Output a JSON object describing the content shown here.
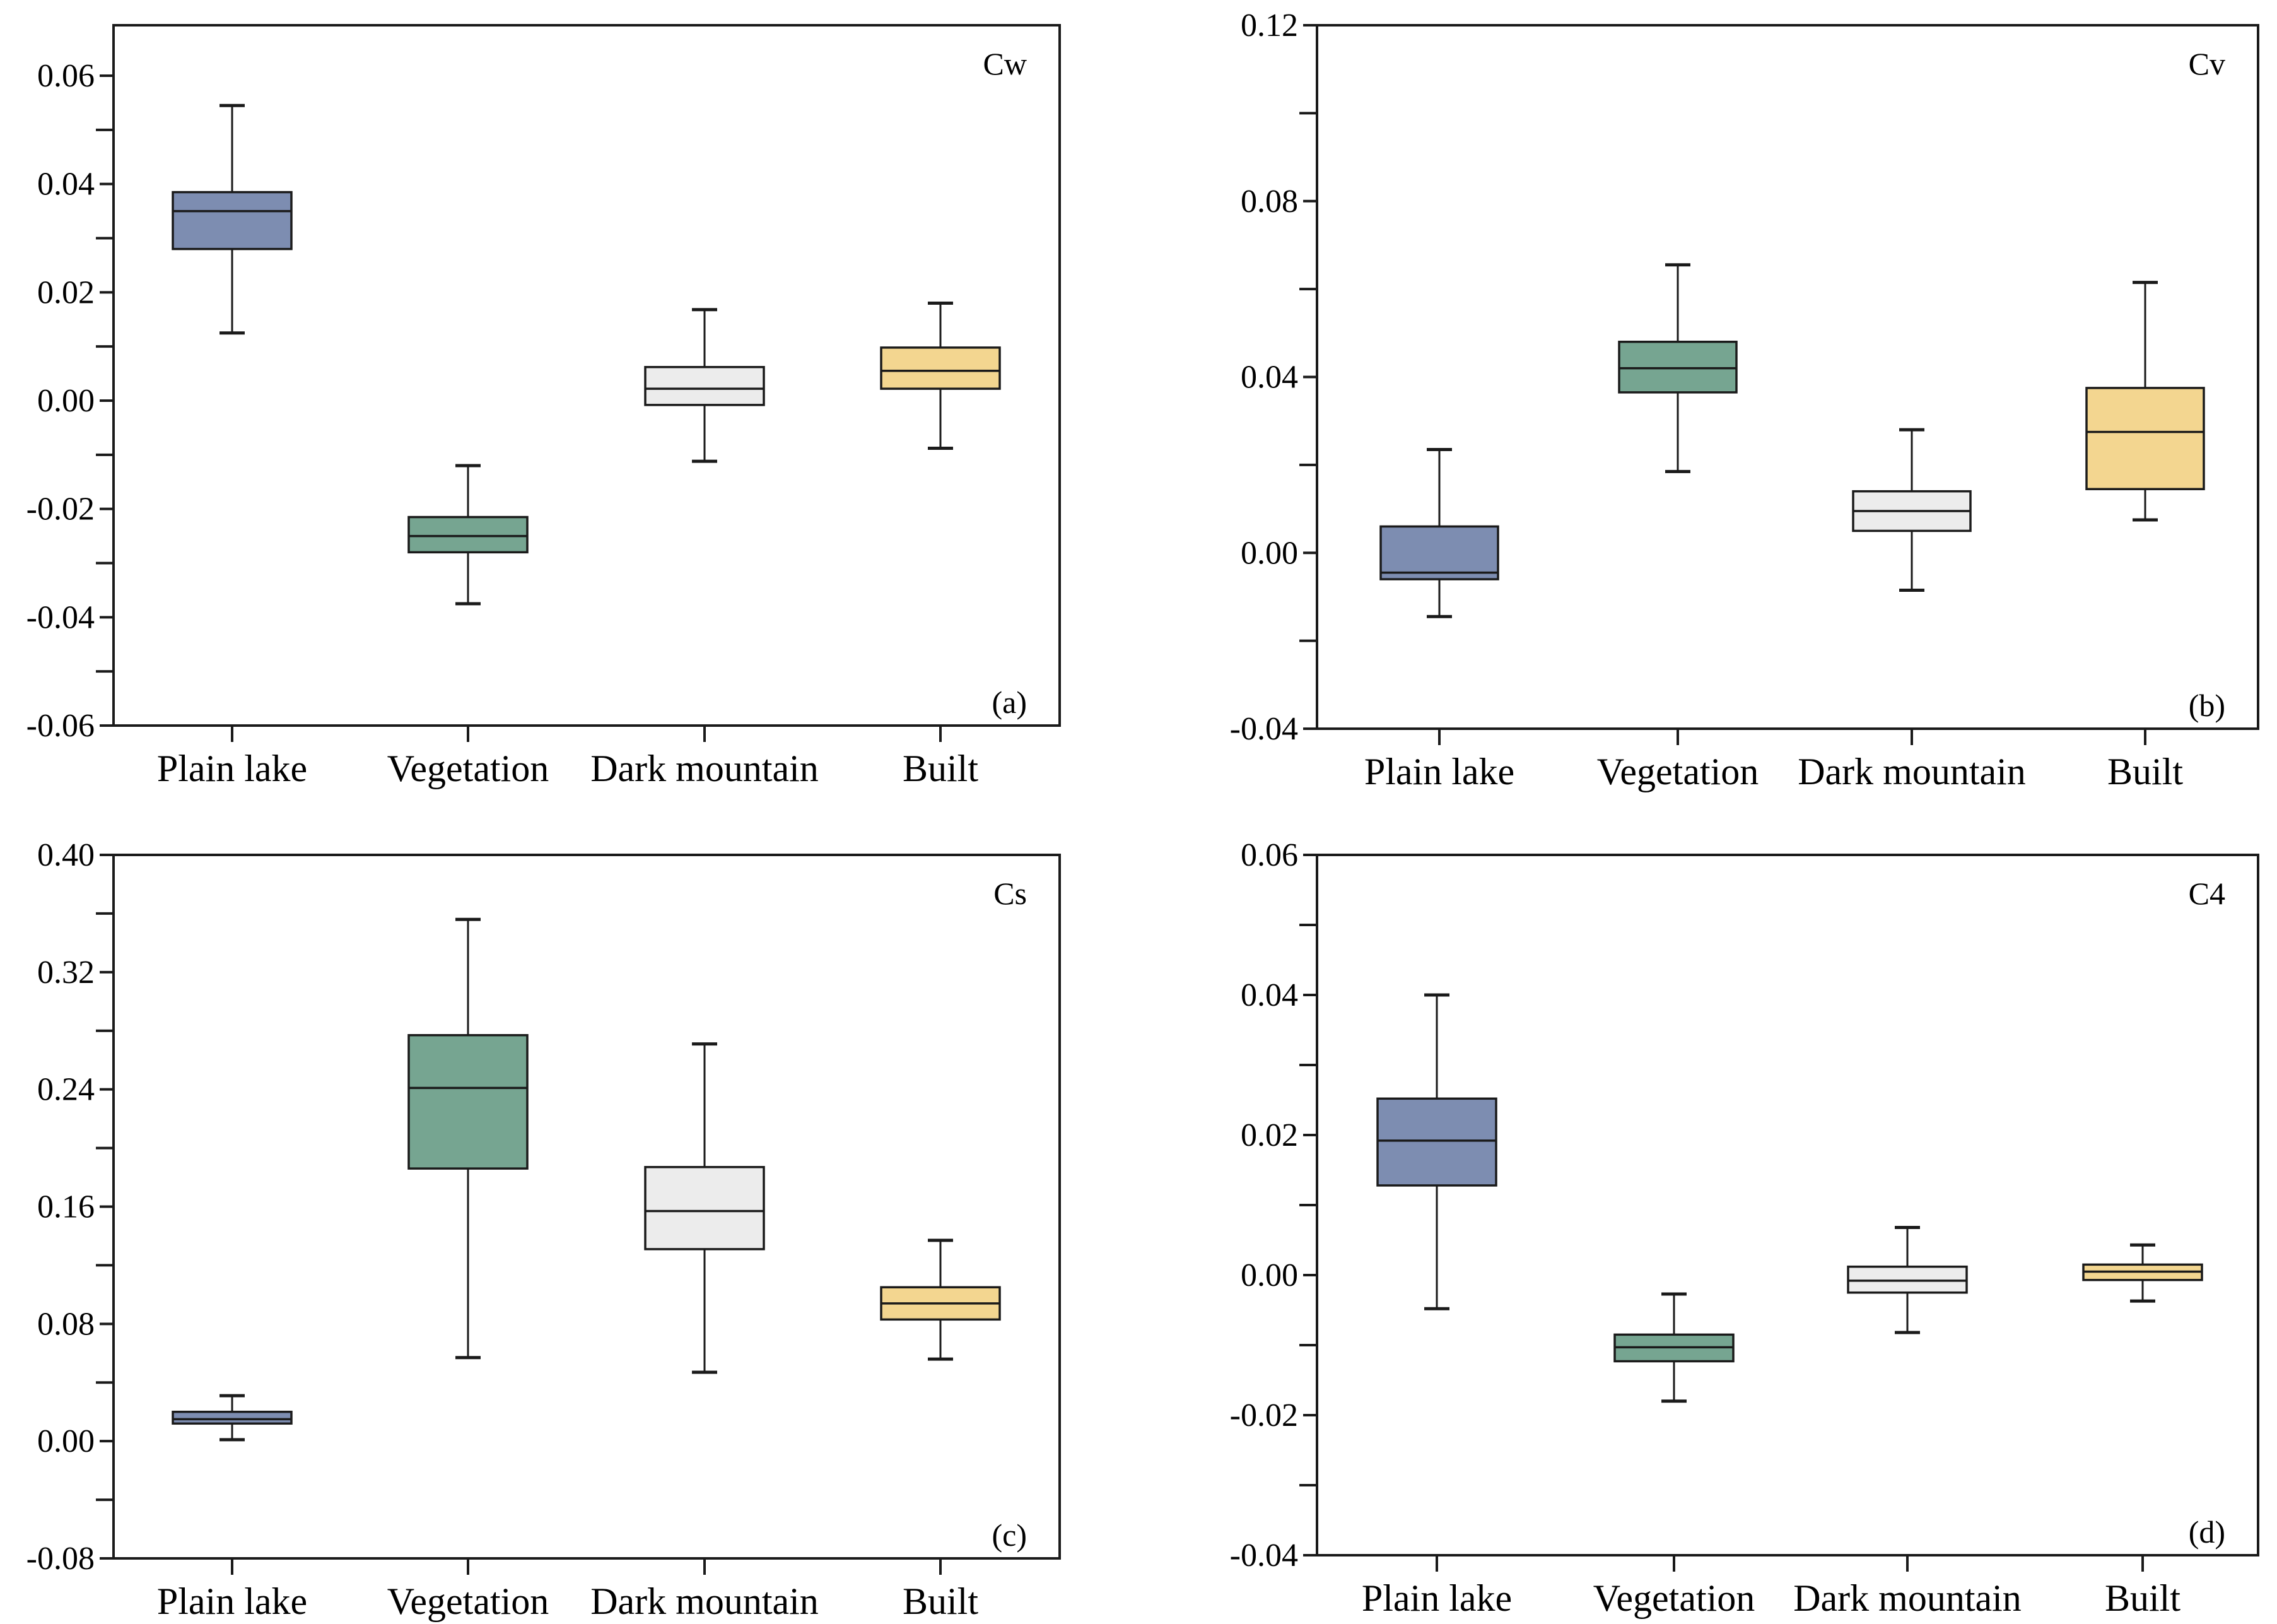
{
  "chart_data": [
    {
      "type": "box",
      "title": "Cw",
      "tag": "(a)",
      "categories": [
        "Plain lake",
        "Vegetation",
        "Dark mountain",
        "Built"
      ],
      "ylim": [
        -0.06,
        0.07
      ],
      "yticks": [
        "0.06",
        "0.04",
        "0.02",
        "0.00",
        "-0.02",
        "-0.04",
        "-0.06"
      ],
      "ytick_values": [
        0.06,
        0.04,
        0.02,
        0.0,
        -0.02,
        -0.04,
        -0.06
      ],
      "minor_ticks": [
        0.05,
        0.03,
        0.01,
        -0.01,
        -0.03,
        -0.05
      ],
      "boxes": [
        {
          "whisker_low": 0.0125,
          "q1": 0.028,
          "median": 0.035,
          "q3": 0.0385,
          "whisker_high": 0.0545
        },
        {
          "whisker_low": -0.0375,
          "q1": -0.028,
          "median": -0.025,
          "q3": -0.0215,
          "whisker_high": -0.012
        },
        {
          "whisker_low": -0.0112,
          "q1": -0.0008,
          "median": 0.0022,
          "q3": 0.0062,
          "whisker_high": 0.0168
        },
        {
          "whisker_low": -0.0088,
          "q1": 0.0022,
          "median": 0.0055,
          "q3": 0.0098,
          "whisker_high": 0.018
        }
      ]
    },
    {
      "type": "box",
      "title": "Cv",
      "tag": "(b)",
      "categories": [
        "Plain lake",
        "Vegetation",
        "Dark mountain",
        "Built"
      ],
      "ylim": [
        -0.04,
        0.12
      ],
      "yticks": [
        "0.12",
        "0.08",
        "0.04",
        "0.00",
        "-0.04"
      ],
      "ytick_values": [
        0.12,
        0.08,
        0.04,
        0.0,
        -0.04
      ],
      "minor_ticks": [
        0.1,
        0.06,
        0.02,
        -0.02
      ],
      "boxes": [
        {
          "whisker_low": -0.0145,
          "q1": -0.006,
          "median": -0.0045,
          "q3": 0.006,
          "whisker_high": 0.0235
        },
        {
          "whisker_low": 0.0185,
          "q1": 0.0365,
          "median": 0.042,
          "q3": 0.048,
          "whisker_high": 0.0655
        },
        {
          "whisker_low": -0.0085,
          "q1": 0.005,
          "median": 0.0095,
          "q3": 0.014,
          "whisker_high": 0.028
        },
        {
          "whisker_low": 0.0075,
          "q1": 0.0145,
          "median": 0.0275,
          "q3": 0.0375,
          "whisker_high": 0.0615
        }
      ]
    },
    {
      "type": "box",
      "title": "Cs",
      "tag": "(c)",
      "categories": [
        "Plain lake",
        "Vegetation",
        "Dark mountain",
        "Built"
      ],
      "ylim": [
        -0.08,
        0.4
      ],
      "yticks": [
        "0.40",
        "0.32",
        "0.24",
        "0.16",
        "0.08",
        "0.00",
        "-0.08"
      ],
      "ytick_values": [
        0.4,
        0.32,
        0.24,
        0.16,
        0.08,
        0.0,
        -0.08
      ],
      "minor_ticks": [
        0.36,
        0.28,
        0.2,
        0.12,
        0.04,
        -0.04
      ],
      "boxes": [
        {
          "whisker_low": 0.001,
          "q1": 0.012,
          "median": 0.015,
          "q3": 0.02,
          "whisker_high": 0.031
        },
        {
          "whisker_low": 0.057,
          "q1": 0.186,
          "median": 0.241,
          "q3": 0.277,
          "whisker_high": 0.356
        },
        {
          "whisker_low": 0.047,
          "q1": 0.131,
          "median": 0.157,
          "q3": 0.187,
          "whisker_high": 0.271
        },
        {
          "whisker_low": 0.056,
          "q1": 0.083,
          "median": 0.094,
          "q3": 0.105,
          "whisker_high": 0.137
        }
      ]
    },
    {
      "type": "box",
      "title": "C4",
      "tag": "(d)",
      "categories": [
        "Plain lake",
        "Vegetation",
        "Dark mountain",
        "Built"
      ],
      "ylim": [
        -0.04,
        0.06
      ],
      "yticks": [
        "0.06",
        "0.04",
        "0.02",
        "0.00",
        "-0.02",
        "-0.04"
      ],
      "ytick_values": [
        0.06,
        0.04,
        0.02,
        0.0,
        -0.02,
        -0.04
      ],
      "minor_ticks": [
        0.05,
        0.03,
        0.01,
        -0.01,
        -0.03
      ],
      "boxes": [
        {
          "whisker_low": -0.0048,
          "q1": 0.0128,
          "median": 0.0192,
          "q3": 0.0252,
          "whisker_high": 0.04
        },
        {
          "whisker_low": -0.018,
          "q1": -0.0123,
          "median": -0.0103,
          "q3": -0.0085,
          "whisker_high": -0.0027
        },
        {
          "whisker_low": -0.0082,
          "q1": -0.0025,
          "median": -0.0008,
          "q3": 0.0012,
          "whisker_high": 0.0068
        },
        {
          "whisker_low": -0.0037,
          "q1": -0.0007,
          "median": 0.0005,
          "q3": 0.0015,
          "whisker_high": 0.0043
        }
      ]
    }
  ],
  "colors": {
    "plain_lake": "#7d8db1",
    "vegetation": "#76a591",
    "dark_mountain": "#ececec",
    "built": "#f3d690"
  }
}
